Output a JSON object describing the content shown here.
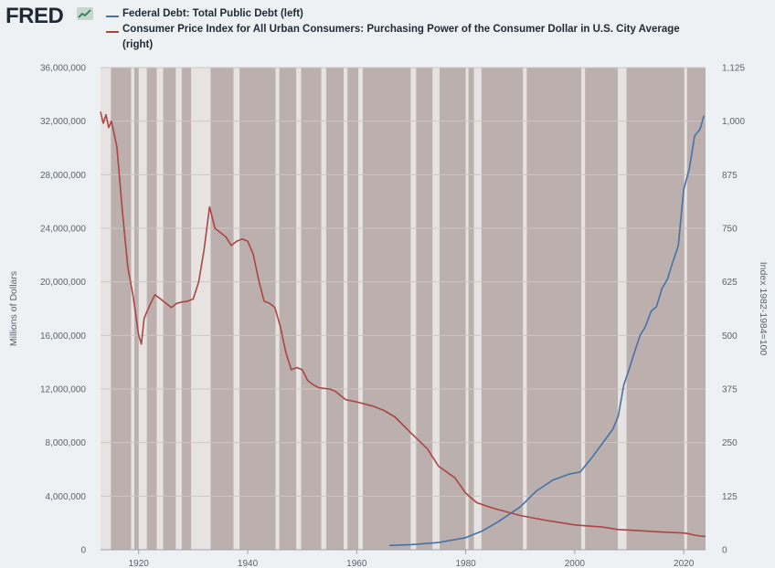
{
  "brand": {
    "name": "FRED",
    "logo_icon": "fred-chart-logo-icon"
  },
  "legend": [
    {
      "label": "Federal Debt: Total Public Debt (left)",
      "color": "#4572a7"
    },
    {
      "label_line1": "Consumer Price Index for All Urban Consumers: Purchasing Power of the Consumer Dollar in U.S. City Average",
      "label_line2": "(right)",
      "color": "#aa4643"
    }
  ],
  "colors": {
    "plot_bg": "#bbb0ad",
    "expansion": "#e6e3e2",
    "grid": "#d4cdcb"
  },
  "chart_data": {
    "type": "line",
    "title": "",
    "x_ticks": [
      "1920",
      "1940",
      "1960",
      "1980",
      "2000",
      "2020"
    ],
    "xlim": [
      1913,
      2024
    ],
    "left_axis": {
      "label": "Millions of Dollars",
      "ylim": [
        0,
        36000000
      ],
      "ticks": [
        "0",
        "4,000,000",
        "8,000,000",
        "12,000,000",
        "16,000,000",
        "20,000,000",
        "24,000,000",
        "28,000,000",
        "32,000,000",
        "36,000,000"
      ]
    },
    "right_axis": {
      "label": "Index 1982-1984=100",
      "ylim": [
        0,
        1125
      ],
      "ticks": [
        "0",
        "125",
        "250",
        "375",
        "500",
        "625",
        "750",
        "875",
        "1,000",
        "1,125"
      ]
    },
    "series": [
      {
        "name": "Federal Debt: Total Public Debt (left)",
        "axis": "left",
        "color": "#4572a7",
        "points": [
          [
            1966,
            320000
          ],
          [
            1970,
            380000
          ],
          [
            1975,
            540000
          ],
          [
            1980,
            900000
          ],
          [
            1983,
            1400000
          ],
          [
            1986,
            2100000
          ],
          [
            1990,
            3200000
          ],
          [
            1993,
            4400000
          ],
          [
            1996,
            5200000
          ],
          [
            1999,
            5650000
          ],
          [
            2001,
            5800000
          ],
          [
            2003,
            6800000
          ],
          [
            2005,
            7900000
          ],
          [
            2007,
            9000000
          ],
          [
            2008,
            10000000
          ],
          [
            2009,
            12300000
          ],
          [
            2010,
            13500000
          ],
          [
            2011,
            14800000
          ],
          [
            2012,
            16000000
          ],
          [
            2013,
            16700000
          ],
          [
            2014,
            17800000
          ],
          [
            2015,
            18150000
          ],
          [
            2016,
            19500000
          ],
          [
            2017,
            20200000
          ],
          [
            2018,
            21500000
          ],
          [
            2019,
            22700000
          ],
          [
            2020,
            26900000
          ],
          [
            2021,
            28400000
          ],
          [
            2022,
            30900000
          ],
          [
            2023,
            31400000
          ],
          [
            2023.7,
            32400000
          ]
        ]
      },
      {
        "name": "Consumer Price Index for All Urban Consumers: Purchasing Power of the Consumer Dollar in U.S. City Average (right)",
        "axis": "right",
        "color": "#aa4643",
        "points": [
          [
            1913,
            1022
          ],
          [
            1913.5,
            995
          ],
          [
            1914,
            1015
          ],
          [
            1914.5,
            985
          ],
          [
            1915,
            1000
          ],
          [
            1915.5,
            970
          ],
          [
            1916,
            940
          ],
          [
            1917,
            790
          ],
          [
            1918,
            660
          ],
          [
            1919,
            590
          ],
          [
            1920,
            500
          ],
          [
            1920.5,
            480
          ],
          [
            1921,
            540
          ],
          [
            1922,
            570
          ],
          [
            1923,
            595
          ],
          [
            1924,
            585
          ],
          [
            1925,
            575
          ],
          [
            1926,
            565
          ],
          [
            1927,
            575
          ],
          [
            1928,
            578
          ],
          [
            1929,
            580
          ],
          [
            1930,
            585
          ],
          [
            1931,
            625
          ],
          [
            1932,
            700
          ],
          [
            1933,
            800
          ],
          [
            1934,
            750
          ],
          [
            1935,
            740
          ],
          [
            1936,
            730
          ],
          [
            1937,
            710
          ],
          [
            1938,
            720
          ],
          [
            1939,
            725
          ],
          [
            1940,
            720
          ],
          [
            1941,
            690
          ],
          [
            1942,
            630
          ],
          [
            1943,
            580
          ],
          [
            1944,
            575
          ],
          [
            1945,
            565
          ],
          [
            1946,
            520
          ],
          [
            1947,
            460
          ],
          [
            1948,
            420
          ],
          [
            1949,
            425
          ],
          [
            1950,
            420
          ],
          [
            1951,
            395
          ],
          [
            1952,
            385
          ],
          [
            1953,
            378
          ],
          [
            1955,
            375
          ],
          [
            1956,
            370
          ],
          [
            1958,
            350
          ],
          [
            1960,
            345
          ],
          [
            1963,
            335
          ],
          [
            1965,
            325
          ],
          [
            1967,
            310
          ],
          [
            1970,
            272
          ],
          [
            1973,
            235
          ],
          [
            1975,
            195
          ],
          [
            1978,
            168
          ],
          [
            1980,
            132
          ],
          [
            1982,
            110
          ],
          [
            1985,
            97
          ],
          [
            1990,
            80
          ],
          [
            1995,
            68
          ],
          [
            2000,
            58
          ],
          [
            2005,
            53
          ],
          [
            2008,
            47
          ],
          [
            2010,
            46
          ],
          [
            2015,
            42
          ],
          [
            2020,
            39
          ],
          [
            2021,
            37
          ],
          [
            2022,
            34
          ],
          [
            2023,
            32
          ],
          [
            2024,
            31
          ]
        ]
      }
    ],
    "recessions": [
      [
        1913.0,
        1914.9
      ],
      [
        1918.6,
        1919.2
      ],
      [
        1920.0,
        1921.5
      ],
      [
        1923.3,
        1924.5
      ],
      [
        1926.8,
        1927.9
      ],
      [
        1929.6,
        1933.2
      ],
      [
        1937.4,
        1938.5
      ],
      [
        1945.1,
        1945.8
      ],
      [
        1948.9,
        1949.8
      ],
      [
        1953.5,
        1954.4
      ],
      [
        1957.6,
        1958.3
      ],
      [
        1960.3,
        1961.1
      ],
      [
        1969.9,
        1970.9
      ],
      [
        1973.9,
        1975.2
      ],
      [
        1980.0,
        1980.5
      ],
      [
        1981.5,
        1982.9
      ],
      [
        1990.5,
        1991.2
      ],
      [
        2001.2,
        2001.9
      ],
      [
        2007.9,
        2009.5
      ],
      [
        2020.1,
        2020.3
      ]
    ]
  }
}
